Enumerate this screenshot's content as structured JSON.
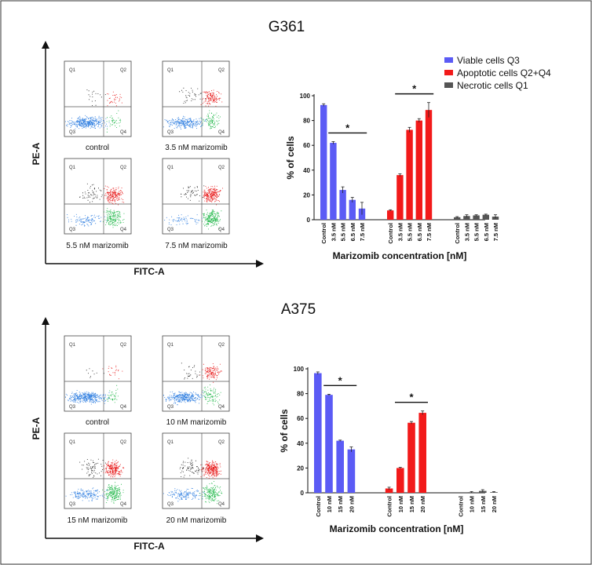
{
  "legend": [
    {
      "name": "Viable cells Q3",
      "color": "#5b5bf5"
    },
    {
      "name": "Apoptotic cells Q2+Q4",
      "color": "#f21a1a"
    },
    {
      "name": "Necrotic cells Q1",
      "color": "#555555"
    }
  ],
  "panels": [
    {
      "title": "G361",
      "flow": {
        "x_axis_label": "FITC-A",
        "y_axis_label": "PE-A",
        "quadrant_labels": [
          "Q1",
          "Q2",
          "Q3",
          "Q4"
        ],
        "plots": [
          {
            "label": "control",
            "density": [
              0.02,
              0.08,
              0.85,
              0.1
            ]
          },
          {
            "label": "3.5 nM marizomib",
            "density": [
              0.04,
              0.3,
              0.6,
              0.25
            ]
          },
          {
            "label": "5.5 nM marizomib",
            "density": [
              0.06,
              0.45,
              0.25,
              0.45
            ]
          },
          {
            "label": "7.5 nM marizomib",
            "density": [
              0.05,
              0.55,
              0.15,
              0.55
            ]
          }
        ]
      }
    },
    {
      "title": "A375",
      "flow": {
        "x_axis_label": "FITC-A",
        "y_axis_label": "PE-A",
        "quadrant_labels": [
          "Q1",
          "Q2",
          "Q3",
          "Q4"
        ],
        "plots": [
          {
            "label": "control",
            "density": [
              0.01,
              0.05,
              0.9,
              0.1
            ]
          },
          {
            "label": "10 nM marizomib",
            "density": [
              0.03,
              0.3,
              0.75,
              0.25
            ]
          },
          {
            "label": "15 nM marizomib",
            "density": [
              0.07,
              0.55,
              0.4,
              0.5
            ]
          },
          {
            "label": "20 nM marizomib",
            "density": [
              0.08,
              0.65,
              0.35,
              0.5
            ]
          }
        ]
      }
    }
  ],
  "chart_data": [
    {
      "type": "bar",
      "title": "G361",
      "xlabel": "Marizomib concentration [nM]",
      "ylabel": "% of cells",
      "ylim": [
        0,
        100
      ],
      "yticks": [
        0,
        20,
        40,
        60,
        80,
        100
      ],
      "categories": [
        "Control",
        "3.5 nM",
        "5.5 nM",
        "6.5 nM",
        "7.5 nM"
      ],
      "series": [
        {
          "name": "Viable cells Q3",
          "values": [
            92.5,
            62,
            24,
            16,
            9
          ],
          "errors": [
            1,
            1,
            2.5,
            2,
            5
          ]
        },
        {
          "name": "Apoptotic cells Q2+Q4",
          "values": [
            7.5,
            36,
            72.5,
            80,
            88.5
          ],
          "errors": [
            0.5,
            1,
            2,
            1.5,
            6
          ]
        },
        {
          "name": "Necrotic cells Q1",
          "values": [
            2,
            3,
            3.5,
            4,
            2.5
          ],
          "errors": [
            0.5,
            1,
            0.5,
            0.5,
            1.5
          ]
        }
      ],
      "significance": [
        {
          "series": 0,
          "from": 1,
          "to": 4,
          "label": "*"
        },
        {
          "series": 1,
          "from": 1,
          "to": 4,
          "label": "*"
        }
      ]
    },
    {
      "type": "bar",
      "title": "A375",
      "xlabel": "Marizomib concentration [nM]",
      "ylabel": "% of cells",
      "ylim": [
        0,
        100
      ],
      "yticks": [
        0,
        20,
        40,
        60,
        80,
        100
      ],
      "categories": [
        "Control",
        "10 nM",
        "15 nM",
        "20 nM"
      ],
      "series": [
        {
          "name": "Viable cells Q3",
          "values": [
            96.5,
            79,
            42,
            35
          ],
          "errors": [
            1,
            0.5,
            0.5,
            2
          ]
        },
        {
          "name": "Apoptotic cells Q2+Q4",
          "values": [
            3.5,
            20,
            56.5,
            64.5
          ],
          "errors": [
            1,
            0.5,
            1,
            1.5
          ]
        },
        {
          "name": "Necrotic cells Q1",
          "values": [
            0,
            0.5,
            1.5,
            0.5
          ],
          "errors": [
            0,
            0.5,
            1,
            0.5
          ]
        }
      ],
      "significance": [
        {
          "series": 0,
          "from": 1,
          "to": 3,
          "label": "*"
        },
        {
          "series": 1,
          "from": 1,
          "to": 3,
          "label": "*"
        }
      ]
    }
  ]
}
